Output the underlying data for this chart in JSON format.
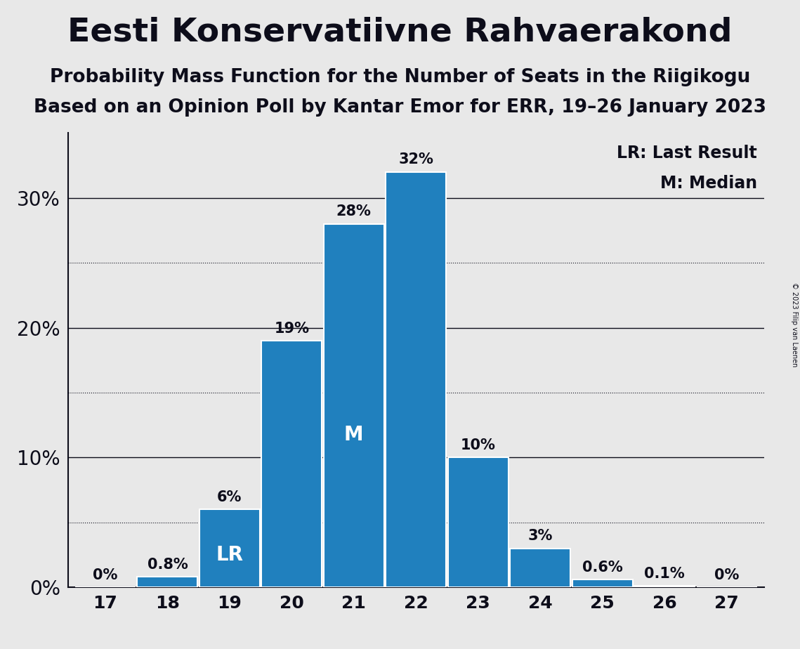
{
  "title": "Eesti Konservatiivne Rahvaerakond",
  "subtitle1": "Probability Mass Function for the Number of Seats in the Riigikogu",
  "subtitle2": "Based on an Opinion Poll by Kantar Emor for ERR, 19–26 January 2023",
  "copyright": "© 2023 Filip van Laenen",
  "seats": [
    17,
    18,
    19,
    20,
    21,
    22,
    23,
    24,
    25,
    26,
    27
  ],
  "probabilities": [
    0.0,
    0.8,
    6.0,
    19.0,
    28.0,
    32.0,
    10.0,
    3.0,
    0.6,
    0.1,
    0.0
  ],
  "bar_color": "#2080BE",
  "background_color": "#E8E8E8",
  "text_color": "#0d0d1a",
  "label_inside_bars": {
    "19": "LR",
    "21": "M"
  },
  "ylim": [
    0,
    35
  ],
  "yticks_solid": [
    0,
    10,
    20,
    30
  ],
  "yticks_dotted": [
    5,
    15,
    25
  ],
  "legend_lr": "LR: Last Result",
  "legend_m": "M: Median",
  "title_fontsize": 34,
  "subtitle_fontsize": 19,
  "ytick_fontsize": 20,
  "xtick_fontsize": 18,
  "bar_label_fontsize": 15,
  "inside_label_fontsize": 20,
  "legend_fontsize": 17
}
